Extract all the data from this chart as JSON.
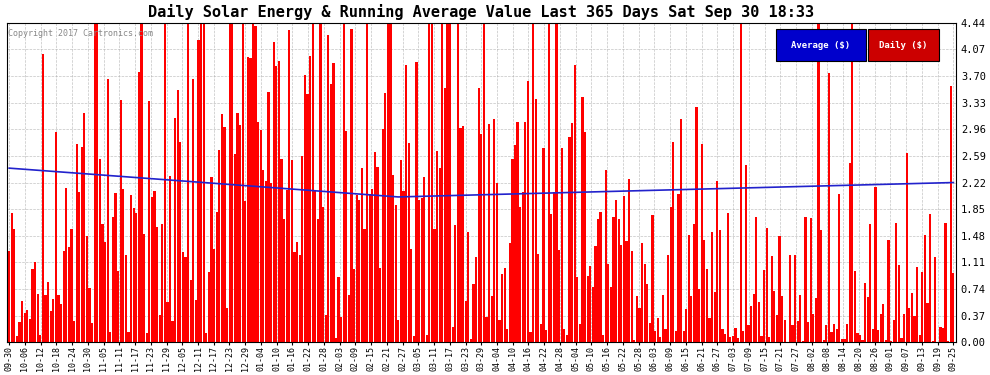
{
  "title": "Daily Solar Energy & Running Average Value Last 365 Days Sat Sep 30 18:33",
  "copyright_text": "Copyright 2017 Cartronics.com",
  "ylim": [
    0.0,
    4.44
  ],
  "yticks": [
    0.0,
    0.37,
    0.74,
    1.11,
    1.48,
    1.85,
    2.22,
    2.59,
    2.96,
    3.33,
    3.7,
    4.07,
    4.44
  ],
  "bar_color": "#FF0000",
  "avg_color": "#2222CC",
  "background_color": "#FFFFFF",
  "grid_color": "#AAAAAA",
  "title_fontsize": 11,
  "x_labels": [
    "09-30",
    "10-06",
    "10-12",
    "10-18",
    "10-24",
    "10-30",
    "11-05",
    "11-11",
    "11-17",
    "11-23",
    "11-29",
    "12-05",
    "12-11",
    "12-17",
    "12-23",
    "12-29",
    "01-04",
    "01-10",
    "01-16",
    "01-22",
    "01-28",
    "02-03",
    "02-09",
    "02-15",
    "02-21",
    "02-27",
    "03-05",
    "03-11",
    "03-17",
    "03-23",
    "03-29",
    "04-04",
    "04-10",
    "04-16",
    "04-22",
    "04-28",
    "05-04",
    "05-10",
    "05-16",
    "05-22",
    "05-28",
    "06-03",
    "06-09",
    "06-15",
    "06-21",
    "06-27",
    "07-03",
    "07-09",
    "07-15",
    "07-21",
    "07-27",
    "08-02",
    "08-08",
    "08-14",
    "08-20",
    "08-26",
    "09-01",
    "09-07",
    "09-13",
    "09-19",
    "09-25"
  ]
}
